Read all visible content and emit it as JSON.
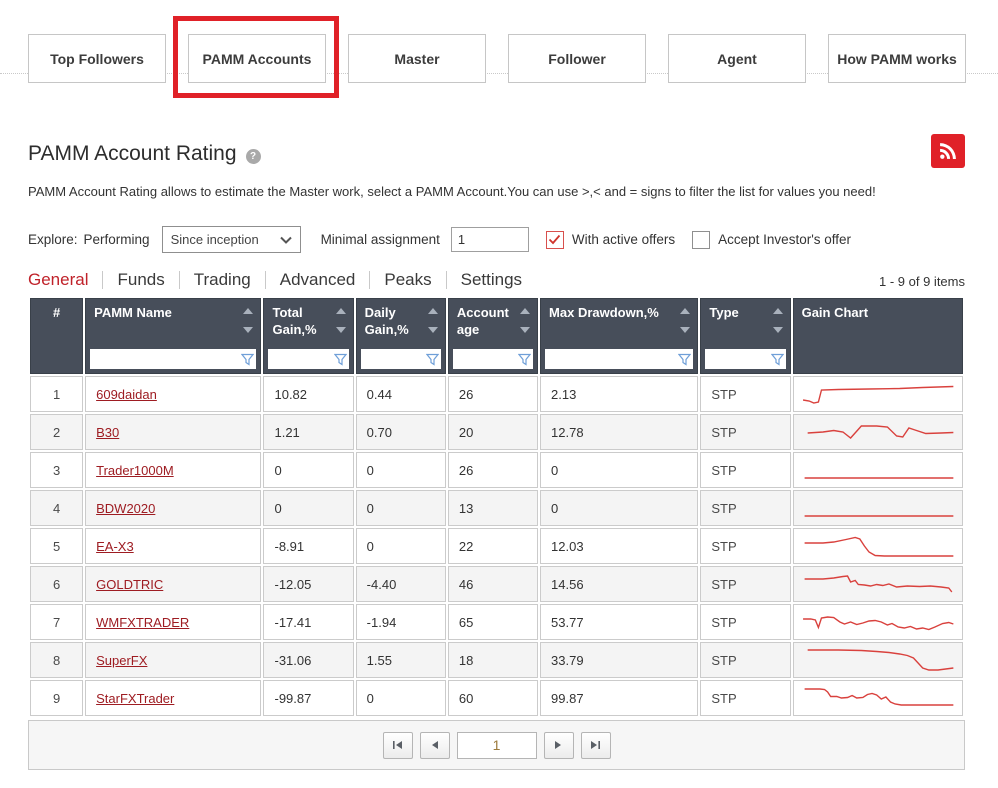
{
  "nav": {
    "buttons": [
      {
        "label": "Top Followers",
        "highlighted": false
      },
      {
        "label": "PAMM Accounts",
        "highlighted": true
      },
      {
        "label": "Master",
        "highlighted": false
      },
      {
        "label": "Follower",
        "highlighted": false
      },
      {
        "label": "Agent",
        "highlighted": false
      },
      {
        "label": "How PAMM works",
        "highlighted": false
      }
    ]
  },
  "header": {
    "title": "PAMM Account Rating",
    "help_glyph": "?",
    "description": "PAMM Account Rating allows to estimate the Master work, select a PAMM Account.You can use >,< and = signs to filter the list for values you need!"
  },
  "filters": {
    "explore_label": "Explore:",
    "performing_label": "Performing",
    "period_select_value": "Since inception",
    "minimal_assignment_label": "Minimal assignment",
    "minimal_assignment_value": "1",
    "with_active_offers": {
      "label": "With active offers",
      "checked": true
    },
    "accept_investors_offer": {
      "label": "Accept Investor's offer",
      "checked": false
    }
  },
  "tabs": {
    "items": [
      "General",
      "Funds",
      "Trading",
      "Advanced",
      "Peaks",
      "Settings"
    ],
    "active": "General"
  },
  "items_count": "1 - 9 of 9 items",
  "table": {
    "columns": [
      {
        "key": "num",
        "label": "#",
        "sortable": false,
        "filterable": false
      },
      {
        "key": "name",
        "label": "PAMM Name",
        "sortable": true,
        "filterable": true
      },
      {
        "key": "total_gain",
        "label": "Total Gain,%",
        "sortable": true,
        "filterable": true
      },
      {
        "key": "daily_gain",
        "label": "Daily Gain,%",
        "sortable": true,
        "filterable": true
      },
      {
        "key": "account_age",
        "label": "Account age",
        "sortable": true,
        "filterable": true
      },
      {
        "key": "max_drawdown",
        "label": "Max Drawdown,%",
        "sortable": true,
        "filterable": true
      },
      {
        "key": "type",
        "label": "Type",
        "sortable": true,
        "filterable": true
      },
      {
        "key": "gain_chart",
        "label": "Gain Chart",
        "sortable": false,
        "filterable": false
      }
    ],
    "rows": [
      {
        "num": "1",
        "name": "609daidan",
        "total_gain": "10.82",
        "daily_gain": "0.44",
        "account_age": "26",
        "max_drawdown": "2.13",
        "type": "STP",
        "spark": "2,21 6,22 9,24 12,23 14,11 25,10.5 45,10 65,9.5 80,8.5 100,7.5"
      },
      {
        "num": "2",
        "name": "B30",
        "total_gain": "1.21",
        "daily_gain": "0.70",
        "account_age": "20",
        "max_drawdown": "12.78",
        "type": "STP",
        "spark": "5,16 15,15 22,13.5 28,15 33,21 40,9 50,9 57,10 63,19 67,20 71,11 75,13 82,16.5 92,16 100,15.5"
      },
      {
        "num": "3",
        "name": "Trader1000M",
        "total_gain": "0",
        "daily_gain": "0",
        "account_age": "26",
        "max_drawdown": "0",
        "type": "STP",
        "spark": "3,23 100,23"
      },
      {
        "num": "4",
        "name": "BDW2020",
        "total_gain": "0",
        "daily_gain": "0",
        "account_age": "13",
        "max_drawdown": "0",
        "type": "STP",
        "spark": "3,23 100,23"
      },
      {
        "num": "5",
        "name": "EA-X3",
        "total_gain": "-8.91",
        "daily_gain": "0",
        "account_age": "22",
        "max_drawdown": "12.03",
        "type": "STP",
        "spark": "3,12 15,12 22,11 30,8.5 36,6.5 39,8 42,15 45,21 49,24.5 55,25 100,25"
      },
      {
        "num": "6",
        "name": "GOLDTRIC",
        "total_gain": "-12.05",
        "daily_gain": "-4.40",
        "account_age": "46",
        "max_drawdown": "14.56",
        "type": "STP",
        "spark": "3,10 15,10 22,9 28,7.5 31,7 33,13 36,11.5 38,15.5 42,16 46,17 50,15.5 54,16.5 58,15 63,18 70,17 78,17.5 85,17 92,18 97,19 99,23"
      },
      {
        "num": "7",
        "name": "WMFXTRADER",
        "total_gain": "-17.41",
        "daily_gain": "-1.94",
        "account_age": "65",
        "max_drawdown": "53.77",
        "type": "STP",
        "spark": "2,12 7,12 10,13 12,20.5 14,11 18,10 22,10.5 26,15 29,17 33,15 37,17.5 41,16 45,14 49,13.5 53,15 57,18 60,16.5 64,20 68,21 72,19.5 76,22 80,21 84,22.5 88,20 93,16.5 97,15.5 100,17"
      },
      {
        "num": "8",
        "name": "SuperFX",
        "total_gain": "-31.06",
        "daily_gain": "1.55",
        "account_age": "18",
        "max_drawdown": "33.79",
        "type": "STP",
        "spark": "5,5 25,5 40,5.5 50,6.5 58,7.5 65,9 70,10.5 74,13 77,18 80,23 84,25 90,25 100,23"
      },
      {
        "num": "9",
        "name": "StarFXTrader",
        "total_gain": "-99.87",
        "daily_gain": "0",
        "account_age": "60",
        "max_drawdown": "99.87",
        "type": "STP",
        "spark": "3,6 13,6 16,6.5 18,9 20,13.5 24,13.5 27,15 31,14.5 34,12.5 37,15 41,14.5 44,11.5 47,10.5 50,12 53,16 56,14 59,19 62,21 66,22 75,22 100,22"
      }
    ]
  },
  "pagination": {
    "page_value": "1"
  },
  "colors": {
    "accent_red": "#e02128",
    "tab_active_red": "#c0222a",
    "link_red": "#9e1c22",
    "spark_red": "#d9413d",
    "header_bg": "#474e5a",
    "check_red": "#d0342c",
    "funnel_blue": "#6f9fd8"
  }
}
